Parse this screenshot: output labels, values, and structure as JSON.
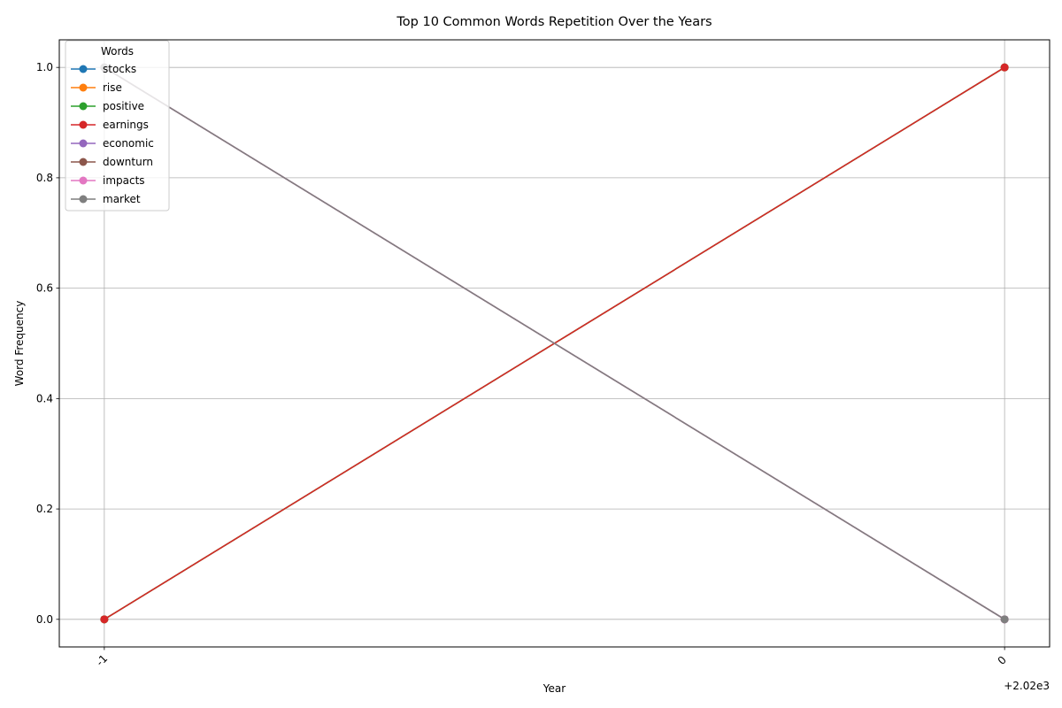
{
  "chart_data": {
    "type": "line",
    "title": "Top 10 Common Words Repetition Over the Years",
    "xlabel": "Year",
    "ylabel": "Word Frequency",
    "x_offset_label": "+2.02e3",
    "x": [
      -1,
      0
    ],
    "x_tick_labels": [
      "-1",
      "0"
    ],
    "xlim": [
      -1.05,
      0.05
    ],
    "ylim": [
      -0.05,
      1.05
    ],
    "y_ticks": [
      0.0,
      0.2,
      0.4,
      0.6,
      0.8,
      1.0
    ],
    "y_tick_labels": [
      "0.0",
      "0.2",
      "0.4",
      "0.6",
      "0.8",
      "1.0"
    ],
    "grid": true,
    "legend_title": "Words",
    "legend_placement": "upper-left",
    "series": [
      {
        "name": "stocks",
        "color": "#1f77b4",
        "values": [
          0,
          1
        ]
      },
      {
        "name": "rise",
        "color": "#ff7f0e",
        "values": [
          0,
          1
        ]
      },
      {
        "name": "positive",
        "color": "#2ca02c",
        "values": [
          0,
          1
        ]
      },
      {
        "name": "earnings",
        "color": "#d62728",
        "values": [
          0,
          1
        ]
      },
      {
        "name": "economic",
        "color": "#9467bd",
        "values": [
          1,
          0
        ]
      },
      {
        "name": "downturn",
        "color": "#8c564b",
        "values": [
          1,
          0
        ]
      },
      {
        "name": "impacts",
        "color": "#e377c2",
        "values": [
          1,
          0
        ]
      },
      {
        "name": "market",
        "color": "#7f7f7f",
        "values": [
          1,
          0
        ]
      }
    ]
  }
}
